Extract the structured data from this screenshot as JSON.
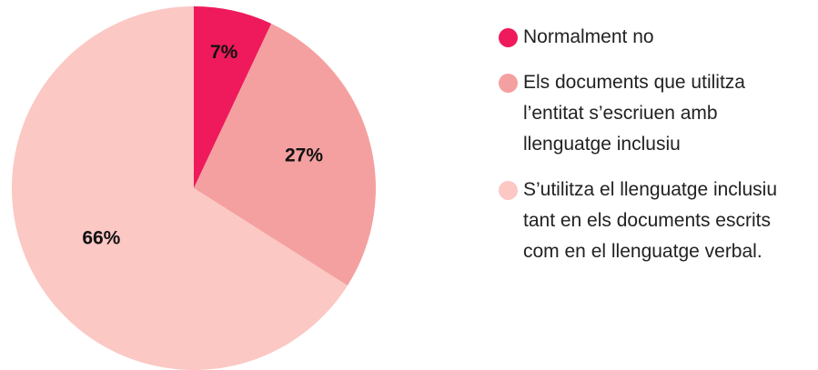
{
  "chart_data": {
    "type": "pie",
    "series": [
      {
        "name": "Normalment no",
        "color": "#ee1a5b",
        "values": [
          7
        ],
        "value_labels": [
          "7%"
        ]
      },
      {
        "name": "Els documents que utilitza l’entitat s’escriuen amb llenguatge inclusiu",
        "color": "#f5a0a0",
        "values": [
          27
        ],
        "value_labels": [
          "27%"
        ]
      },
      {
        "name": "S’utilitza el llenguatge inclusiu tant en els documents escrits com en el llenguatge verbal.",
        "color": "#fbc8c4",
        "values": [
          66
        ],
        "value_labels": [
          "66%"
        ]
      }
    ]
  }
}
